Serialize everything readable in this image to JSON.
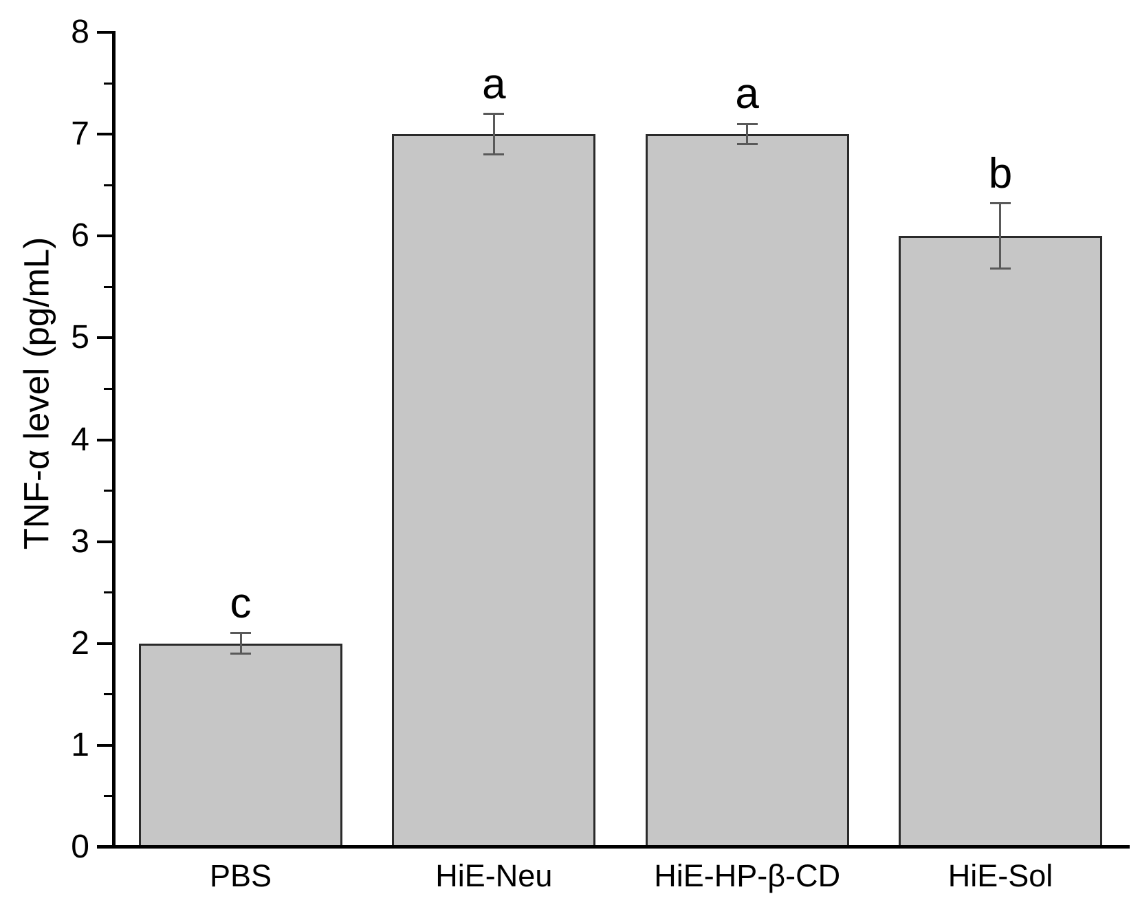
{
  "chart_data": {
    "type": "bar",
    "title": "",
    "xlabel": "",
    "ylabel": "TNF-α level (pg/mL)",
    "categories": [
      "PBS",
      "HiE-Neu",
      "HiE-HP-β-CD",
      "HiE-Sol"
    ],
    "values": [
      2,
      7,
      7,
      6
    ],
    "errors": [
      0.1,
      0.2,
      0.1,
      0.32
    ],
    "significance_letters": [
      "c",
      "a",
      "a",
      "b"
    ],
    "ylim": [
      0,
      8
    ],
    "y_ticks": [
      0,
      1,
      2,
      3,
      4,
      5,
      6,
      7,
      8
    ],
    "y_minor_step": 0.5,
    "grid": false,
    "legend": false,
    "colors": {
      "bar_fill": "#c6c6c6",
      "bar_border": "#2a2a2a",
      "error_bar": "#595959",
      "axis": "#000000",
      "text": "#000000"
    }
  }
}
